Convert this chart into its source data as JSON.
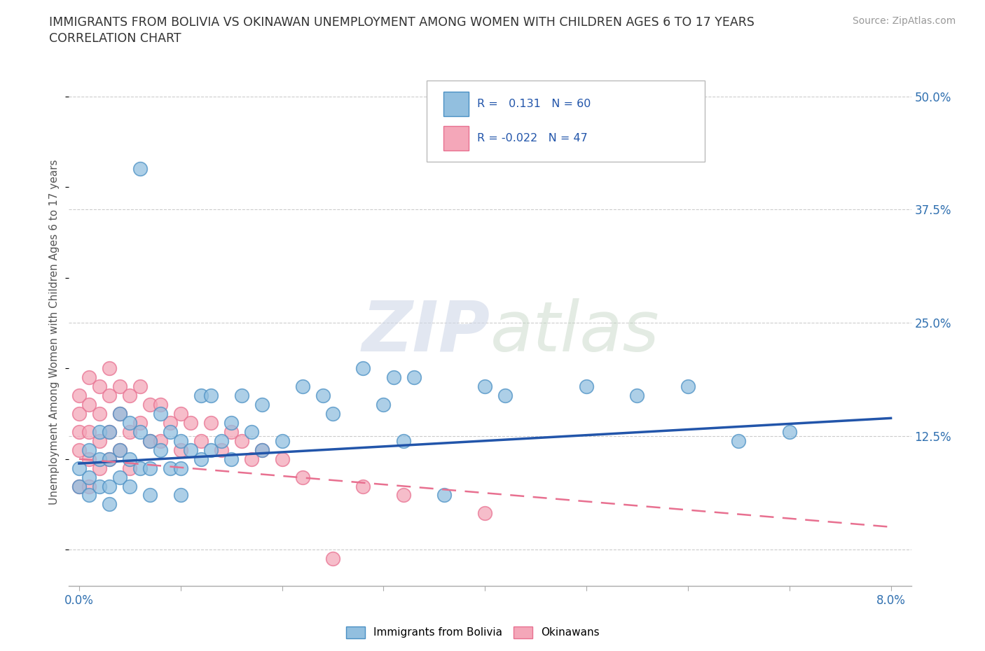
{
  "title_line1": "IMMIGRANTS FROM BOLIVIA VS OKINAWAN UNEMPLOYMENT AMONG WOMEN WITH CHILDREN AGES 6 TO 17 YEARS",
  "title_line2": "CORRELATION CHART",
  "source_text": "Source: ZipAtlas.com",
  "ylabel": "Unemployment Among Women with Children Ages 6 to 17 years",
  "xlim": [
    -0.001,
    0.082
  ],
  "ylim": [
    -0.04,
    0.52
  ],
  "xticks": [
    0.0,
    0.01,
    0.02,
    0.03,
    0.04,
    0.05,
    0.06,
    0.07,
    0.08
  ],
  "xticklabels": [
    "0.0%",
    "",
    "",
    "",
    "",
    "",
    "",
    "",
    "8.0%"
  ],
  "yticks_right": [
    0.0,
    0.125,
    0.25,
    0.375,
    0.5
  ],
  "ytick_right_labels": [
    "",
    "12.5%",
    "25.0%",
    "37.5%",
    "50.0%"
  ],
  "blue_color": "#92BFDF",
  "pink_color": "#F4A7B9",
  "blue_edge_color": "#4A90C4",
  "pink_edge_color": "#E87090",
  "blue_line_color": "#2255AA",
  "pink_line_color": "#E87090",
  "watermark_zip": "ZIP",
  "watermark_atlas": "atlas",
  "blue_scatter_x": [
    0.0,
    0.0,
    0.001,
    0.001,
    0.001,
    0.002,
    0.002,
    0.002,
    0.003,
    0.003,
    0.003,
    0.003,
    0.004,
    0.004,
    0.004,
    0.005,
    0.005,
    0.005,
    0.006,
    0.006,
    0.006,
    0.007,
    0.007,
    0.007,
    0.008,
    0.008,
    0.009,
    0.009,
    0.01,
    0.01,
    0.01,
    0.011,
    0.012,
    0.012,
    0.013,
    0.013,
    0.014,
    0.015,
    0.015,
    0.016,
    0.017,
    0.018,
    0.018,
    0.02,
    0.022,
    0.024,
    0.025,
    0.028,
    0.03,
    0.031,
    0.032,
    0.033,
    0.036,
    0.04,
    0.042,
    0.05,
    0.055,
    0.06,
    0.065,
    0.07
  ],
  "blue_scatter_y": [
    0.09,
    0.07,
    0.11,
    0.08,
    0.06,
    0.13,
    0.1,
    0.07,
    0.13,
    0.1,
    0.07,
    0.05,
    0.15,
    0.11,
    0.08,
    0.14,
    0.1,
    0.07,
    0.42,
    0.13,
    0.09,
    0.12,
    0.09,
    0.06,
    0.15,
    0.11,
    0.13,
    0.09,
    0.12,
    0.09,
    0.06,
    0.11,
    0.17,
    0.1,
    0.17,
    0.11,
    0.12,
    0.14,
    0.1,
    0.17,
    0.13,
    0.16,
    0.11,
    0.12,
    0.18,
    0.17,
    0.15,
    0.2,
    0.16,
    0.19,
    0.12,
    0.19,
    0.06,
    0.18,
    0.17,
    0.18,
    0.17,
    0.18,
    0.12,
    0.13
  ],
  "pink_scatter_x": [
    0.0,
    0.0,
    0.0,
    0.0,
    0.0,
    0.001,
    0.001,
    0.001,
    0.001,
    0.001,
    0.002,
    0.002,
    0.002,
    0.002,
    0.003,
    0.003,
    0.003,
    0.003,
    0.004,
    0.004,
    0.004,
    0.005,
    0.005,
    0.005,
    0.006,
    0.006,
    0.007,
    0.007,
    0.008,
    0.008,
    0.009,
    0.01,
    0.01,
    0.011,
    0.012,
    0.013,
    0.014,
    0.015,
    0.016,
    0.017,
    0.018,
    0.02,
    0.022,
    0.025,
    0.028,
    0.032,
    0.04
  ],
  "pink_scatter_y": [
    0.17,
    0.15,
    0.13,
    0.11,
    0.07,
    0.19,
    0.16,
    0.13,
    0.1,
    0.07,
    0.18,
    0.15,
    0.12,
    0.09,
    0.2,
    0.17,
    0.13,
    0.1,
    0.18,
    0.15,
    0.11,
    0.17,
    0.13,
    0.09,
    0.18,
    0.14,
    0.16,
    0.12,
    0.16,
    0.12,
    0.14,
    0.15,
    0.11,
    0.14,
    0.12,
    0.14,
    0.11,
    0.13,
    0.12,
    0.1,
    0.11,
    0.1,
    0.08,
    -0.01,
    0.07,
    0.06,
    0.04
  ],
  "blue_trend_x": [
    0.0,
    0.08
  ],
  "blue_trend_y": [
    0.095,
    0.145
  ],
  "pink_trend_x": [
    0.0,
    0.08
  ],
  "pink_trend_y": [
    0.1,
    0.025
  ]
}
